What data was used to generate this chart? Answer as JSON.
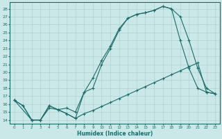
{
  "xlabel": "Humidex (Indice chaleur)",
  "background_color": "#cbe8e8",
  "grid_color": "#b0d0d0",
  "line_color": "#1a6b6b",
  "xlim": [
    -0.5,
    23.5
  ],
  "ylim": [
    13.5,
    28.8
  ],
  "xticks": [
    0,
    1,
    2,
    3,
    4,
    5,
    6,
    7,
    8,
    9,
    10,
    11,
    12,
    13,
    14,
    15,
    16,
    17,
    18,
    19,
    20,
    21,
    22,
    23
  ],
  "yticks": [
    14,
    15,
    16,
    17,
    18,
    19,
    20,
    21,
    22,
    23,
    24,
    25,
    26,
    27,
    28
  ],
  "curve1_x": [
    0,
    1,
    2,
    3,
    4,
    5,
    6,
    7,
    8,
    9,
    10,
    11,
    12,
    13,
    14,
    15,
    16,
    17,
    18,
    19,
    20,
    21,
    22,
    23
  ],
  "curve1_y": [
    16.5,
    15.8,
    14.0,
    14.0,
    15.5,
    15.3,
    14.8,
    14.2,
    17.5,
    19.3,
    21.5,
    23.3,
    25.5,
    26.8,
    27.3,
    27.5,
    27.8,
    28.3,
    28.0,
    24.0,
    20.5,
    18.0,
    17.5,
    17.3
  ],
  "curve2_x": [
    0,
    2,
    3,
    4,
    5,
    6,
    7,
    8,
    9,
    10,
    11,
    12,
    13,
    14,
    15,
    16,
    17,
    18,
    19,
    20,
    21,
    22,
    23
  ],
  "curve2_y": [
    16.5,
    14.0,
    14.0,
    15.8,
    15.3,
    15.5,
    15.0,
    17.5,
    18.0,
    21.0,
    23.0,
    25.3,
    26.8,
    27.3,
    27.5,
    27.8,
    28.3,
    28.0,
    27.0,
    24.0,
    20.5,
    18.0,
    17.3
  ],
  "curve3_x": [
    0,
    1,
    2,
    3,
    4,
    5,
    6,
    7,
    8,
    9,
    10,
    11,
    12,
    13,
    14,
    15,
    16,
    17,
    18,
    19,
    20,
    21,
    22,
    23
  ],
  "curve3_y": [
    16.5,
    15.8,
    14.0,
    14.0,
    15.8,
    15.3,
    14.8,
    14.2,
    14.8,
    15.2,
    15.7,
    16.2,
    16.7,
    17.2,
    17.7,
    18.2,
    18.7,
    19.2,
    19.7,
    20.2,
    20.7,
    21.2,
    17.5,
    17.3
  ]
}
